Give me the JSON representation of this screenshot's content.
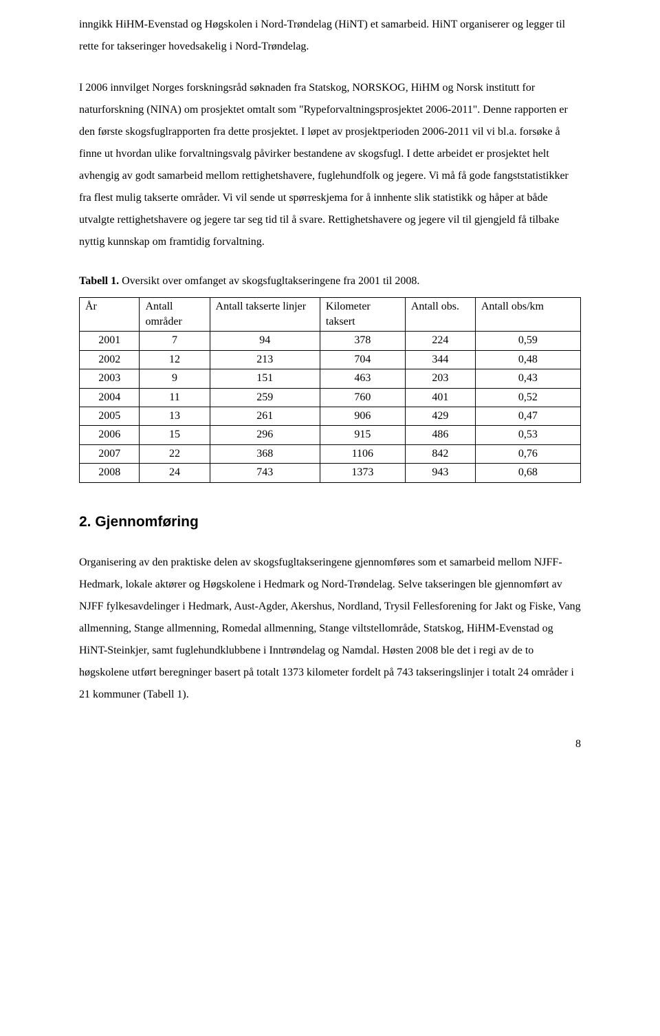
{
  "paragraphs": {
    "p1": "inngikk HiHM-Evenstad og Høgskolen i Nord-Trøndelag (HiNT) et samarbeid. HiNT organiserer og legger til rette for takseringer hovedsakelig i Nord-Trøndelag.",
    "p2": "I 2006 innvilget Norges forskningsråd søknaden fra Statskog, NORSKOG, HiHM og Norsk institutt for naturforskning (NINA) om prosjektet omtalt som \"Rypeforvaltningsprosjektet 2006-2011\". Denne rapporten er den første skogsfuglrapporten fra dette prosjektet. I løpet av prosjektperioden 2006-2011 vil vi bl.a. forsøke å finne ut hvordan ulike forvaltningsvalg påvirker bestandene av skogsfugl. I dette arbeidet er prosjektet helt avhengig av godt samarbeid mellom rettighetshavere, fuglehundfolk og jegere. Vi må få gode fangststatistikker fra flest mulig takserte områder. Vi vil sende ut spørreskjema for å innhente slik statistikk og  håper at både utvalgte rettighetshavere og jegere tar seg tid til å svare. Rettighetshavere og jegere vil til gjengjeld få tilbake nyttig kunnskap om framtidig forvaltning.",
    "p3": "Organisering av den praktiske delen av skogsfugltakseringene gjennomføres som et samarbeid mellom NJFF-Hedmark, lokale aktører og Høgskolene i Hedmark og Nord-Trøndelag. Selve takseringen ble gjennomført av NJFF fylkesavdelinger i Hedmark, Aust-Agder, Akershus, Nordland, Trysil Fellesforening for Jakt og Fiske, Vang allmenning, Stange allmenning, Romedal allmenning, Stange viltstellområde, Statskog, HiHM-Evenstad og HiNT-Steinkjer, samt fuglehundklubbene i Inntrøndelag og Namdal. Høsten 2008 ble det i regi av de to høgskolene utført beregninger basert på totalt 1373 kilometer fordelt på 743 takseringslinjer i totalt 24 områder i 21 kommuner (Tabell 1)."
  },
  "table_caption": {
    "label": "Tabell 1.",
    "text": " Oversikt over omfanget av skogsfugltakseringene fra 2001 til 2008."
  },
  "table": {
    "headers": {
      "c1": "År",
      "c2": "Antall områder",
      "c3": "Antall takserte linjer",
      "c4": "Kilometer taksert",
      "c5": "Antall obs.",
      "c6": "Antall obs/km"
    },
    "rows": [
      {
        "year": "2001",
        "areas": "7",
        "lines": "94",
        "km": "378",
        "obs": "224",
        "obskm": "0,59"
      },
      {
        "year": "2002",
        "areas": "12",
        "lines": "213",
        "km": "704",
        "obs": "344",
        "obskm": "0,48"
      },
      {
        "year": "2003",
        "areas": "9",
        "lines": "151",
        "km": "463",
        "obs": "203",
        "obskm": "0,43"
      },
      {
        "year": "2004",
        "areas": "11",
        "lines": "259",
        "km": "760",
        "obs": "401",
        "obskm": "0,52"
      },
      {
        "year": "2005",
        "areas": "13",
        "lines": "261",
        "km": "906",
        "obs": "429",
        "obskm": "0,47"
      },
      {
        "year": "2006",
        "areas": "15",
        "lines": "296",
        "km": "915",
        "obs": "486",
        "obskm": "0,53"
      },
      {
        "year": "2007",
        "areas": "22",
        "lines": "368",
        "km": "1106",
        "obs": "842",
        "obskm": "0,76"
      },
      {
        "year": "2008",
        "areas": "24",
        "lines": "743",
        "km": "1373",
        "obs": "943",
        "obskm": "0,68"
      }
    ]
  },
  "section_heading": "2. Gjennomføring",
  "page_number": "8"
}
